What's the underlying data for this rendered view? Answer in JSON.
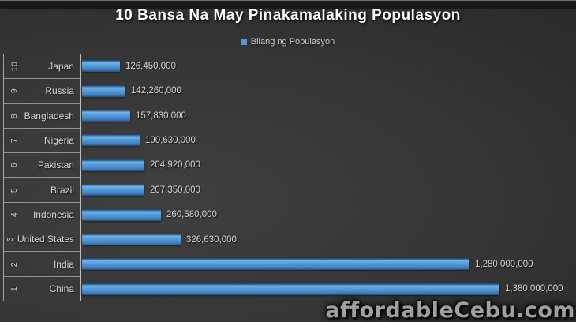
{
  "title": "10 Bansa Na May Pinakamalaking Populasyon",
  "legend": {
    "label": "Bilang ng Populasyon",
    "swatch_color": "#4e96d8"
  },
  "watermark": "affordableCebu.com",
  "colors": {
    "bar_blue": "#4e96d8",
    "background_dark": "#2a2a2a",
    "grid_line": "#bebebe",
    "label_text": "#d9d9d9",
    "title_text": "#fbfbfb"
  },
  "chart_data": {
    "type": "bar",
    "orientation": "horizontal",
    "title": "10 Bansa Na May Pinakamalaking Populasyon",
    "legend_entries": [
      "Bilang ng Populasyon"
    ],
    "legend_position": "top",
    "grid": false,
    "value_axis_visible": false,
    "xlim": [
      0,
      1380000000
    ],
    "category_axis_levels": [
      "rank",
      "country"
    ],
    "rows": [
      {
        "rank": "10",
        "country": "Japan",
        "value": 126450000,
        "value_label": "126,450,000"
      },
      {
        "rank": "9",
        "country": "Russia",
        "value": 142260000,
        "value_label": "142,260,000"
      },
      {
        "rank": "8",
        "country": "Bangladesh",
        "value": 157830000,
        "value_label": "157,830,000"
      },
      {
        "rank": "7",
        "country": "Nigeria",
        "value": 190630000,
        "value_label": "190,630,000"
      },
      {
        "rank": "6",
        "country": "Pakistan",
        "value": 204920000,
        "value_label": "204,920,000"
      },
      {
        "rank": "5",
        "country": "Brazil",
        "value": 207350000,
        "value_label": "207,350,000"
      },
      {
        "rank": "4",
        "country": "Indonesia",
        "value": 260580000,
        "value_label": "260,580,000"
      },
      {
        "rank": "3",
        "country": "United States",
        "value": 326630000,
        "value_label": "326,630,000"
      },
      {
        "rank": "2",
        "country": "India",
        "value": 1280000000,
        "value_label": "1,280,000,000"
      },
      {
        "rank": "1",
        "country": "China",
        "value": 1380000000,
        "value_label": "1,380,000,000"
      }
    ]
  }
}
